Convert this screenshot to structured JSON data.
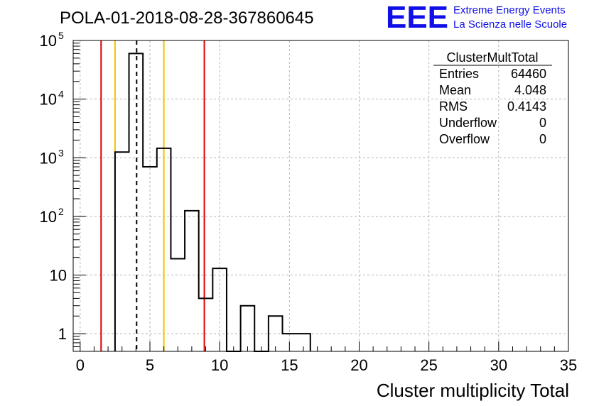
{
  "chart_data": {
    "type": "bar",
    "title": "POLA-01-2018-08-28-367860645",
    "xlabel": "Cluster multiplicity Total",
    "ylabel": "",
    "x_range": [
      -0.5,
      35
    ],
    "y_range": [
      0.5,
      100000
    ],
    "y_scale": "log",
    "grid": true,
    "bin_width": 1,
    "x_ticks": [
      "0",
      "5",
      "10",
      "15",
      "20",
      "25",
      "30",
      "35"
    ],
    "x_tick_values": [
      0,
      5,
      10,
      15,
      20,
      25,
      30,
      35
    ],
    "y_ticks": [
      {
        "base": "1",
        "exp": "",
        "value": 1
      },
      {
        "base": "10",
        "exp": "",
        "value": 10
      },
      {
        "base": "10",
        "exp": "2",
        "value": 100
      },
      {
        "base": "10",
        "exp": "3",
        "value": 1000
      },
      {
        "base": "10",
        "exp": "4",
        "value": 10000
      },
      {
        "base": "10",
        "exp": "5",
        "value": 100000
      }
    ],
    "bins": [
      {
        "low": 2.5,
        "high": 3.5,
        "value": 1250
      },
      {
        "low": 3.5,
        "high": 4.5,
        "value": 60000
      },
      {
        "low": 4.5,
        "high": 5.5,
        "value": 700
      },
      {
        "low": 5.5,
        "high": 6.5,
        "value": 1450
      },
      {
        "low": 6.5,
        "high": 7.5,
        "value": 19
      },
      {
        "low": 7.5,
        "high": 8.5,
        "value": 125
      },
      {
        "low": 8.5,
        "high": 9.5,
        "value": 4
      },
      {
        "low": 9.5,
        "high": 10.5,
        "value": 13
      },
      {
        "low": 11.5,
        "high": 12.5,
        "value": 3
      },
      {
        "low": 13.5,
        "high": 14.5,
        "value": 2
      },
      {
        "low": 14.5,
        "high": 15.5,
        "value": 1
      },
      {
        "low": 15.5,
        "high": 16.5,
        "value": 1
      }
    ],
    "vertical_lines": [
      {
        "x": 1.5,
        "color": "#e00000",
        "style": "solid"
      },
      {
        "x": 2.5,
        "color": "#f2c200",
        "style": "solid"
      },
      {
        "x": 4.048,
        "color": "#000000",
        "style": "dashed"
      },
      {
        "x": 6.0,
        "color": "#f2c200",
        "style": "solid"
      },
      {
        "x": 8.9,
        "color": "#e00000",
        "style": "solid"
      }
    ],
    "stats": {
      "name": "ClusterMultTotal",
      "rows": [
        {
          "label": "Entries",
          "value": "64460"
        },
        {
          "label": "Mean",
          "value": "4.048"
        },
        {
          "label": "RMS",
          "value": "0.4143"
        },
        {
          "label": "Underflow",
          "value": "0"
        },
        {
          "label": "Overflow",
          "value": "0"
        }
      ]
    }
  },
  "logo": {
    "letters": "EEE",
    "line1": "Extreme Energy Events",
    "line2": "La Scienza nelle Scuole",
    "color": "#1010e6"
  }
}
